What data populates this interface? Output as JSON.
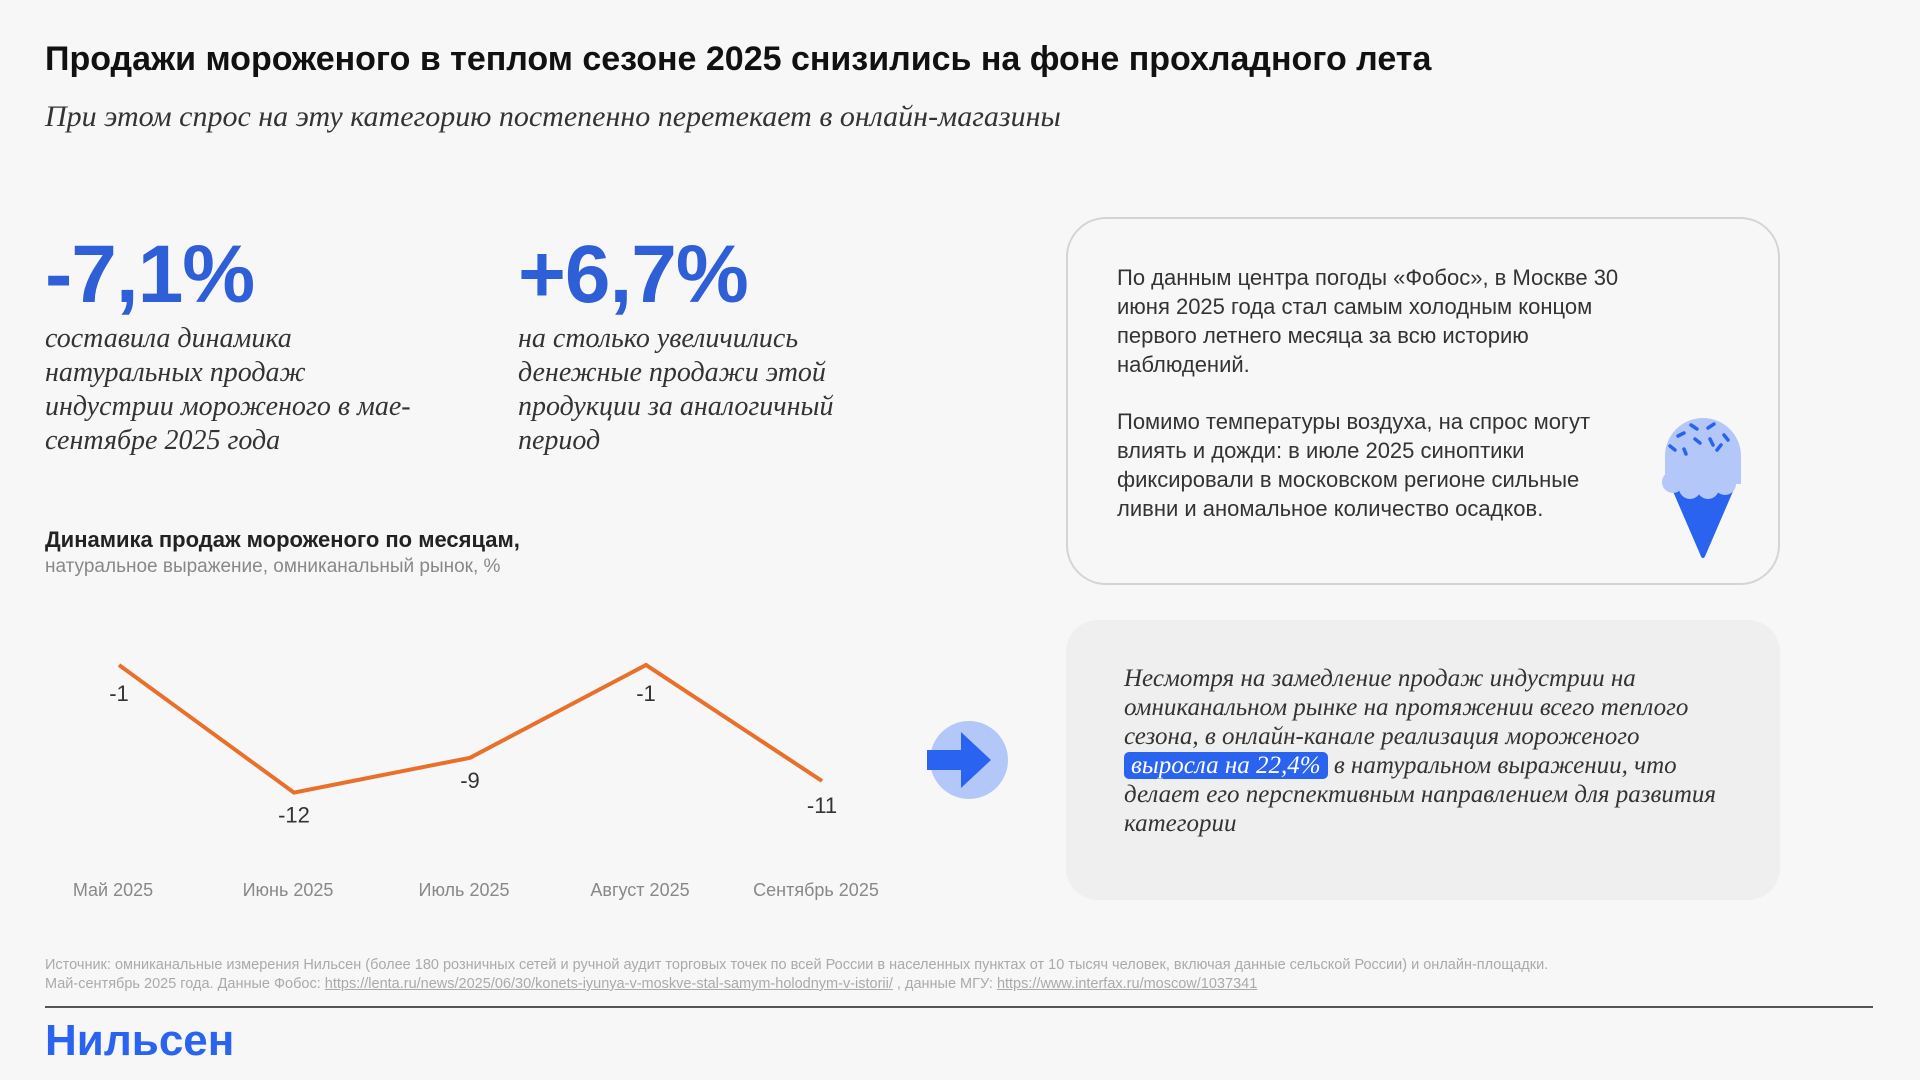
{
  "header": {
    "title": "Продажи мороженого в теплом сезоне 2025 снизились на фоне прохладного лета",
    "subtitle": "При этом спрос на эту категорию постепенно перетекает в онлайн-магазины"
  },
  "kpis": [
    {
      "value": "-7,1%",
      "description": "составила динамика натуральных продаж индустрии мороженого в мае-сентябре 2025 года"
    },
    {
      "value": "+6,7%",
      "description": "на столько увеличились денежные продажи этой продукции за аналогичный период"
    }
  ],
  "weather_box": {
    "p1": "По данным центра погоды «Фобос», в Москве 30 июня 2025 года стал самым холодным концом первого летнего месяца за всю историю наблюдений.",
    "p2": "Помимо температуры воздуха, на спрос могут влиять и дожди: в июле 2025 синоптики фиксировали в московском регионе сильные ливни и аномальное количество осадков.",
    "icon": "ice-cream-icon"
  },
  "online_box": {
    "before": "Несмотря на замедление продаж индустрии на омниканальном рынке на протяжении всего теплого сезона, в онлайн-канале реализация мороженого ",
    "highlight": "выросла на 22,4%",
    "after": " в натуральном выражении, что делает его перспективным направлением для развития категории"
  },
  "chart_data": {
    "type": "line",
    "title": "Динамика продаж мороженого по месяцам,",
    "subtitle": "натуральное выражение, омниканальный рынок, %",
    "categories": [
      "Май 2025",
      "Июнь 2025",
      "Июль 2025",
      "Август 2025",
      "Сентябрь 2025"
    ],
    "values": [
      -1,
      -12,
      -9,
      -1,
      -11
    ],
    "labels": [
      "-1",
      "-12",
      "-9",
      "-1",
      "-11"
    ],
    "line_color": "#e8702a",
    "grid": false
  },
  "footer": {
    "source1": "Источник: омниканальные измерения Нильсен (более 180 розничных сетей и ручной аудит торговых точек по всей России в населенных пунктах от 10 тысяч человек, включая данные сельской России) и онлайн-площадки.",
    "source2_prefix": "Май-сентябрь 2025 года. Данные Фобос: ",
    "link1": "https://lenta.ru/news/2025/06/30/konets-iyunya-v-moskve-stal-samym-holodnym-v-istorii/",
    "source2_mid": " , данные МГУ: ",
    "link2": "https://www.interfax.ru/moscow/1037341",
    "logo": "Нильсен"
  },
  "colors": {
    "accent": "#2a63f0",
    "kpi": "#2f5fd6",
    "line": "#e8702a"
  }
}
